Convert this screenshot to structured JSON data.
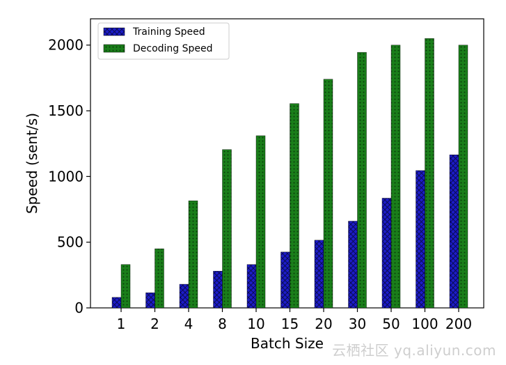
{
  "chart_data": {
    "type": "bar",
    "title": "",
    "xlabel": "Batch Size",
    "ylabel": "Speed (sent/s)",
    "categories": [
      "1",
      "2",
      "4",
      "8",
      "10",
      "15",
      "20",
      "30",
      "50",
      "100",
      "200"
    ],
    "series": [
      {
        "name": "Training Speed",
        "color": "#1c1cc8",
        "values": [
          80,
          115,
          180,
          280,
          330,
          425,
          515,
          660,
          835,
          1045,
          1165
        ]
      },
      {
        "name": "Decoding Speed",
        "color": "#147814",
        "values": [
          330,
          450,
          815,
          1205,
          1310,
          1555,
          1740,
          1945,
          2000,
          2050,
          2000
        ]
      }
    ],
    "ylim": [
      0,
      2200
    ],
    "yticks": [
      0,
      500,
      1000,
      1500,
      2000
    ],
    "legend_position": "top-left"
  },
  "watermark": "云栖社区 yq.aliyun.com"
}
